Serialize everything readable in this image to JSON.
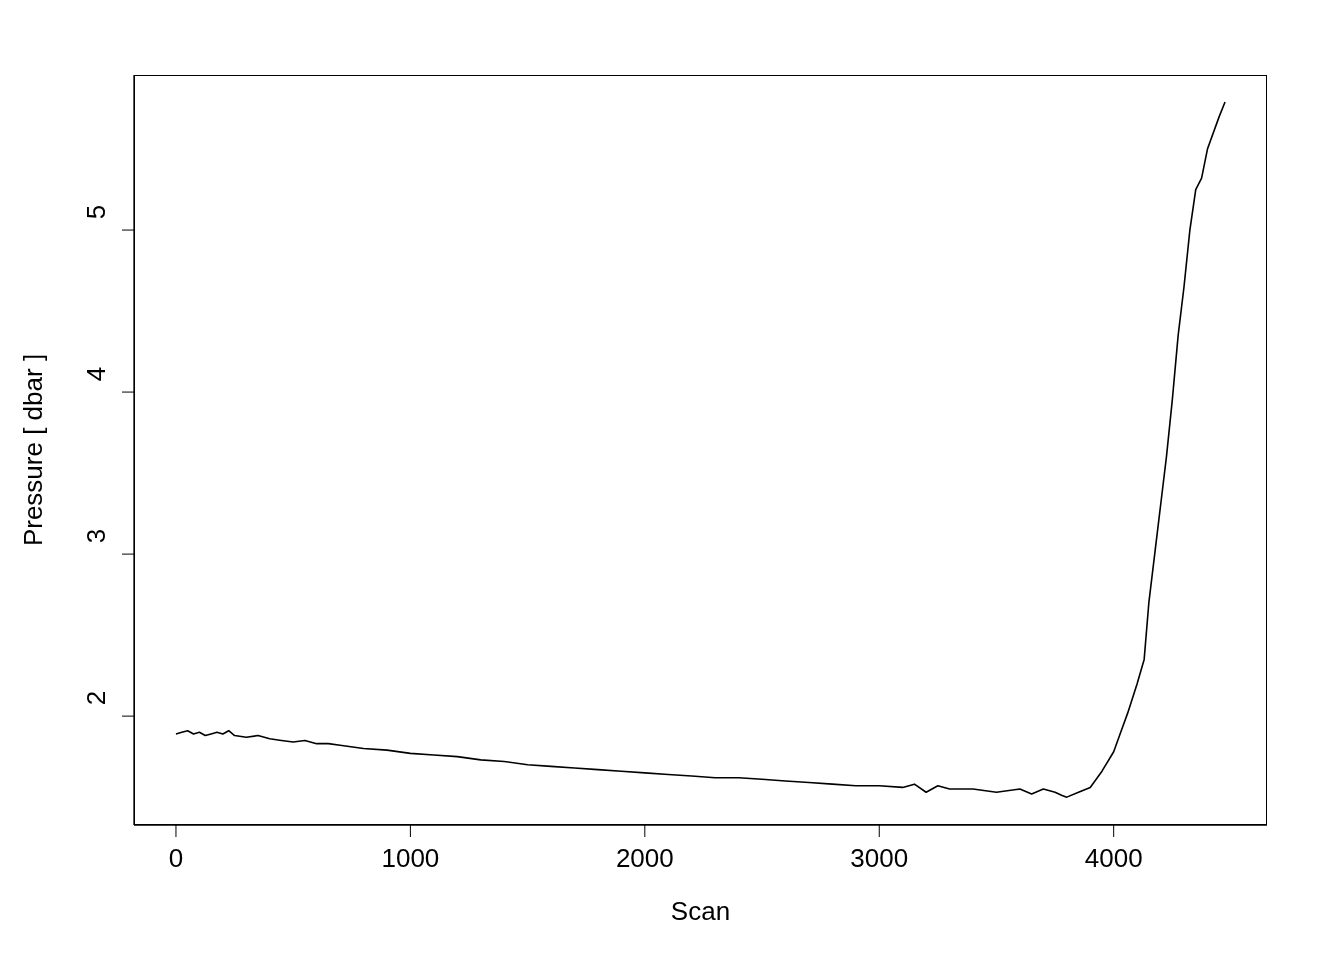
{
  "chart_data": {
    "type": "line",
    "xlabel": "Scan",
    "ylabel": "Pressure [ dbar ]",
    "xlim": [
      -179,
      4654
    ],
    "xticks": [
      0,
      1000,
      2000,
      3000,
      4000
    ],
    "ylim": [
      1.328,
      5.957
    ],
    "yticks": [
      2,
      3,
      4,
      5
    ],
    "grid": false,
    "legend": false,
    "marker": "none",
    "line_style": "solid",
    "series": [
      {
        "color": "#000000",
        "x": [
          0,
          25,
          50,
          75,
          100,
          125,
          150,
          175,
          200,
          225,
          250,
          300,
          350,
          400,
          450,
          500,
          550,
          600,
          650,
          700,
          800,
          900,
          1000,
          1100,
          1200,
          1300,
          1400,
          1500,
          1600,
          1700,
          1800,
          1900,
          2000,
          2100,
          2200,
          2300,
          2400,
          2500,
          2600,
          2700,
          2800,
          2900,
          3000,
          3100,
          3150,
          3200,
          3250,
          3300,
          3400,
          3500,
          3600,
          3650,
          3700,
          3750,
          3780,
          3800,
          3850,
          3900,
          3950,
          4000,
          4030,
          4060,
          4100,
          4130,
          4150,
          4175,
          4200,
          4225,
          4250,
          4275,
          4300,
          4325,
          4350,
          4375,
          4400,
          4450,
          4475
        ],
        "values": [
          1.89,
          1.9,
          1.91,
          1.89,
          1.9,
          1.88,
          1.89,
          1.9,
          1.89,
          1.91,
          1.88,
          1.87,
          1.88,
          1.86,
          1.85,
          1.84,
          1.85,
          1.83,
          1.83,
          1.82,
          1.8,
          1.79,
          1.77,
          1.76,
          1.75,
          1.73,
          1.72,
          1.7,
          1.69,
          1.68,
          1.67,
          1.66,
          1.65,
          1.64,
          1.63,
          1.62,
          1.62,
          1.61,
          1.6,
          1.59,
          1.58,
          1.57,
          1.57,
          1.56,
          1.58,
          1.53,
          1.57,
          1.55,
          1.55,
          1.53,
          1.55,
          1.52,
          1.55,
          1.53,
          1.51,
          1.5,
          1.53,
          1.56,
          1.66,
          1.78,
          1.9,
          2.02,
          2.2,
          2.35,
          2.7,
          3.0,
          3.3,
          3.6,
          3.95,
          4.35,
          4.65,
          5.0,
          5.25,
          5.32,
          5.5,
          5.7,
          5.79
        ]
      }
    ]
  }
}
